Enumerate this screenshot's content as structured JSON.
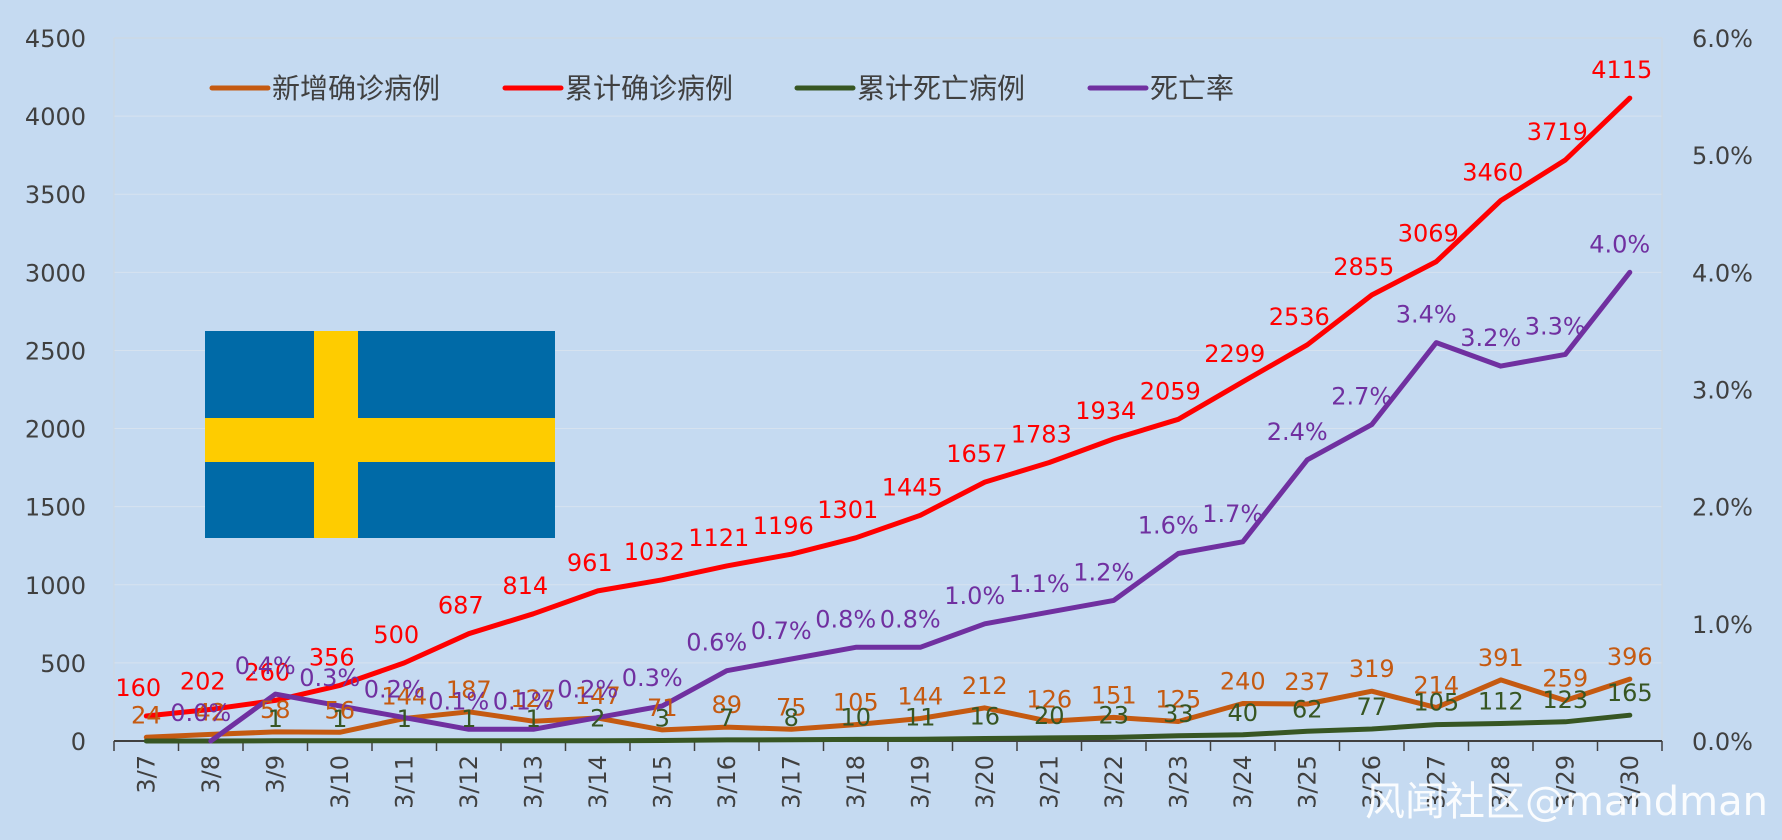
{
  "chart_data": {
    "type": "line",
    "title": "",
    "categories": [
      "3/7",
      "3/8",
      "3/9",
      "3/10",
      "3/11",
      "3/12",
      "3/13",
      "3/14",
      "3/15",
      "3/16",
      "3/17",
      "3/18",
      "3/19",
      "3/20",
      "3/21",
      "3/22",
      "3/23",
      "3/24",
      "3/25",
      "3/26",
      "3/27",
      "3/28",
      "3/29",
      "3/30"
    ],
    "y_left": {
      "min": 0,
      "max": 4500,
      "step": 500,
      "ticks": [
        "0",
        "500",
        "1000",
        "1500",
        "2000",
        "2500",
        "3000",
        "3500",
        "4000",
        "4500"
      ]
    },
    "y_right": {
      "min": 0,
      "max": 6.0,
      "step": 1.0,
      "ticks": [
        "0.0%",
        "1.0%",
        "2.0%",
        "3.0%",
        "4.0%",
        "5.0%",
        "6.0%"
      ]
    },
    "legend_position": "top",
    "series": [
      {
        "key": "new",
        "name": "新增确诊病例",
        "color": "#c55a11",
        "axis": "left",
        "values": [
          24,
          42,
          58,
          56,
          144,
          187,
          127,
          147,
          71,
          89,
          75,
          105,
          144,
          212,
          126,
          151,
          125,
          240,
          237,
          319,
          214,
          391,
          259,
          396
        ],
        "labels": [
          "24",
          "42",
          "58",
          "56",
          "144",
          "187",
          "127",
          "147",
          "71",
          "89",
          "75",
          "105",
          "144",
          "212",
          "126",
          "151",
          "125",
          "240",
          "237",
          "319",
          "214",
          "391",
          "259",
          "396"
        ]
      },
      {
        "key": "cum",
        "name": "累计确诊病例",
        "color": "#ff0000",
        "axis": "left",
        "values": [
          160,
          202,
          260,
          356,
          500,
          687,
          814,
          961,
          1032,
          1121,
          1196,
          1301,
          1445,
          1657,
          1783,
          1934,
          2059,
          2299,
          2536,
          2855,
          3069,
          3460,
          3719,
          4115
        ],
        "labels": [
          "160",
          "202",
          "260",
          "356",
          "500",
          "687",
          "814",
          "961",
          "1032",
          "1121",
          "1196",
          "1301",
          "1445",
          "1657",
          "1783",
          "1934",
          "2059",
          "2299",
          "2536",
          "2855",
          "3069",
          "3460",
          "3719",
          "4115"
        ]
      },
      {
        "key": "deaths",
        "name": "累计死亡病例",
        "color": "#375623",
        "axis": "left",
        "values": [
          0,
          0,
          1,
          1,
          1,
          1,
          1,
          2,
          3,
          7,
          8,
          10,
          11,
          16,
          20,
          23,
          33,
          40,
          62,
          77,
          105,
          112,
          123,
          165
        ],
        "labels": [
          null,
          null,
          "1",
          "1",
          "1",
          "1",
          "1",
          "2",
          "3",
          "7",
          "8",
          "10",
          "11",
          "16",
          "20",
          "23",
          "33",
          "40",
          "62",
          "77",
          "105",
          "112",
          "123",
          "165"
        ]
      },
      {
        "key": "rate",
        "name": "死亡率",
        "color": "#7030a0",
        "axis": "right",
        "values": [
          null,
          0.0,
          0.4,
          0.3,
          0.2,
          0.1,
          0.1,
          0.2,
          0.3,
          0.6,
          0.7,
          0.8,
          0.8,
          1.0,
          1.1,
          1.2,
          1.6,
          1.7,
          2.4,
          2.7,
          3.4,
          3.2,
          3.3,
          4.0
        ],
        "labels": [
          null,
          "0.0%",
          "0.4%",
          "0.3%",
          "0.2%",
          "0.1%",
          "0.1%",
          "0.2%",
          "0.3%",
          "0.6%",
          "0.7%",
          "0.8%",
          "0.8%",
          "1.0%",
          "1.1%",
          "1.2%",
          "1.6%",
          "1.7%",
          "2.4%",
          "2.7%",
          "3.4%",
          "3.2%",
          "3.3%",
          "4.0%"
        ]
      }
    ]
  },
  "watermark": "风闻社区@mandman",
  "flag": {
    "name": "Sweden",
    "blue": "#006aa7",
    "yellow": "#fecc00"
  }
}
